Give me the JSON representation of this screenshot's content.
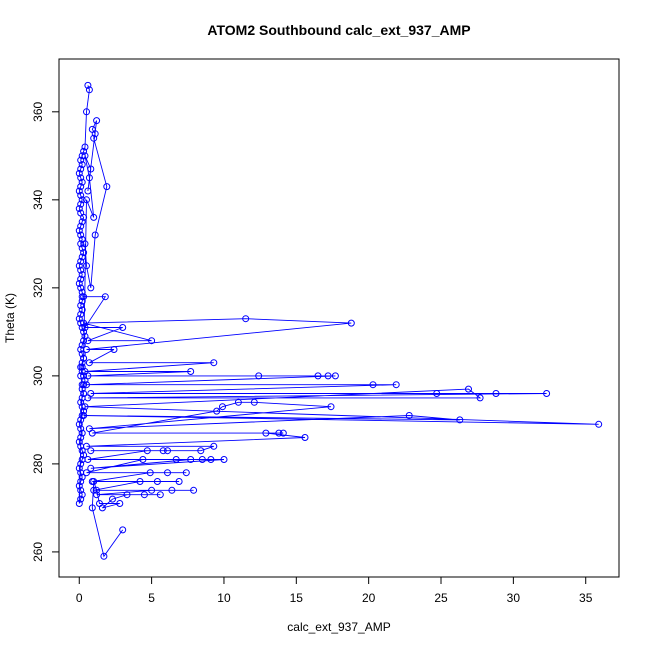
{
  "chart_data": {
    "type": "scatter",
    "title": "ATOM2 Southbound calc_ext_937_AMP",
    "xlabel": "calc_ext_937_AMP",
    "ylabel": "Theta (K)",
    "xlim": [
      -1.4,
      37.3
    ],
    "ylim": [
      254.3,
      372.0
    ],
    "x_ticks": [
      0,
      5,
      10,
      15,
      20,
      25,
      30,
      35
    ],
    "y_ticks": [
      260,
      280,
      300,
      320,
      340,
      360
    ],
    "grid": false,
    "legend": "none",
    "color": "#0000ff",
    "marker": "open-circle",
    "connected": true,
    "series": [
      {
        "x": [
          0.6,
          0.7,
          0.5,
          0.4,
          0.3,
          0.2,
          0.1,
          0.2,
          0.1,
          0.0,
          0.1,
          0.2,
          0.1,
          0.0,
          0.1,
          0.2,
          0.1,
          0.0,
          0.1,
          0.3,
          0.2,
          0.1,
          0.0,
          0.1,
          0.2,
          0.1,
          0.2,
          0.3,
          0.2,
          0.1,
          0.0,
          0.1,
          0.2,
          0.1,
          0.0,
          0.1,
          0.2,
          0.3,
          0.2,
          0.1,
          0.2,
          0.1,
          0.0,
          0.1,
          0.2,
          0.3,
          0.4,
          0.3,
          0.2,
          0.1,
          0.2,
          0.3,
          0.2,
          0.1,
          0.2,
          0.3,
          0.4,
          0.3,
          0.2,
          0.3,
          0.2,
          0.1,
          0.2,
          0.3,
          0.2,
          0.1,
          0.0,
          0.1,
          0.2,
          0.1,
          0.0,
          0.1,
          0.2,
          0.3,
          0.2,
          0.1,
          0.0,
          0.1,
          0.2,
          0.1,
          0.0,
          0.1,
          0.2,
          0.1,
          0.0,
          0.2,
          0.1,
          0.2,
          0.3,
          0.5,
          1.0,
          0.7,
          0.4,
          0.8,
          0.6,
          1.2,
          0.9,
          1.1,
          1.0,
          1.9,
          1.1,
          0.8,
          0.5,
          0.4
        ],
        "y": [
          366,
          365,
          360,
          352,
          351,
          350,
          349,
          348,
          347,
          346,
          345,
          344,
          343,
          342,
          341,
          340,
          339,
          338,
          337,
          336,
          335,
          334,
          333,
          332,
          331,
          330,
          329,
          328,
          327,
          326,
          325,
          324,
          323,
          322,
          321,
          320,
          319,
          318,
          317,
          316,
          315,
          314,
          313,
          312,
          311,
          310,
          309,
          308,
          307,
          306,
          305,
          304,
          303,
          302,
          301,
          300,
          299,
          298,
          297,
          296,
          295,
          294,
          293,
          292,
          291,
          290,
          289,
          288,
          287,
          286,
          285,
          284,
          283,
          282,
          281,
          280,
          279,
          278,
          277,
          276,
          275,
          274,
          273,
          272,
          271,
          298,
          300,
          302,
          304,
          340,
          336,
          345,
          350,
          347,
          342,
          358,
          356,
          355,
          354,
          343,
          332,
          320,
          325,
          330
        ]
      },
      {
        "x": [
          0.2,
          1.8,
          0.4,
          3.0,
          0.6,
          5.0,
          0.3,
          11.5,
          18.8,
          0.5,
          2.4,
          0.7,
          9.3,
          0.4,
          7.7,
          0.6,
          12.4,
          16.5,
          17.2,
          17.7,
          0.5,
          20.3,
          21.9,
          0.8,
          24.7,
          28.8,
          32.3,
          0.6,
          27.7,
          26.9,
          0.4,
          35.9,
          0.3,
          26.3,
          22.8,
          0.7,
          17.4,
          12.1,
          11.0,
          9.9,
          9.5,
          0.9,
          14.1,
          13.8,
          12.9,
          15.6,
          0.5,
          9.3,
          8.4,
          0.8,
          6.1,
          5.8,
          4.7,
          0.6,
          9.1,
          8.5,
          7.7,
          0.8,
          10.0,
          6.7,
          4.4,
          0.5,
          7.4,
          6.1,
          4.9,
          0.9,
          6.9,
          5.4,
          4.2,
          1.0,
          7.9,
          6.4,
          5.0,
          1.2,
          5.6,
          4.5,
          3.3,
          2.3,
          1.6,
          2.8,
          1.4,
          1.2,
          1.0,
          0.9,
          1.7,
          3.0
        ],
        "y": [
          318,
          318,
          311,
          311,
          308,
          308,
          312,
          313,
          312,
          306,
          306,
          303,
          303,
          301,
          301,
          300,
          300,
          300,
          300,
          300,
          298,
          298,
          298,
          296,
          296,
          296,
          296,
          295,
          295,
          297,
          293,
          289,
          291,
          290,
          291,
          288,
          293,
          294,
          294,
          293,
          292,
          287,
          287,
          287,
          287,
          286,
          284,
          284,
          283,
          283,
          283,
          283,
          283,
          281,
          281,
          281,
          281,
          279,
          281,
          281,
          281,
          278,
          278,
          278,
          278,
          276,
          276,
          276,
          276,
          274,
          274,
          274,
          274,
          273,
          273,
          273,
          273,
          272,
          270,
          271,
          271,
          274,
          276,
          270,
          259,
          265
        ]
      }
    ]
  }
}
